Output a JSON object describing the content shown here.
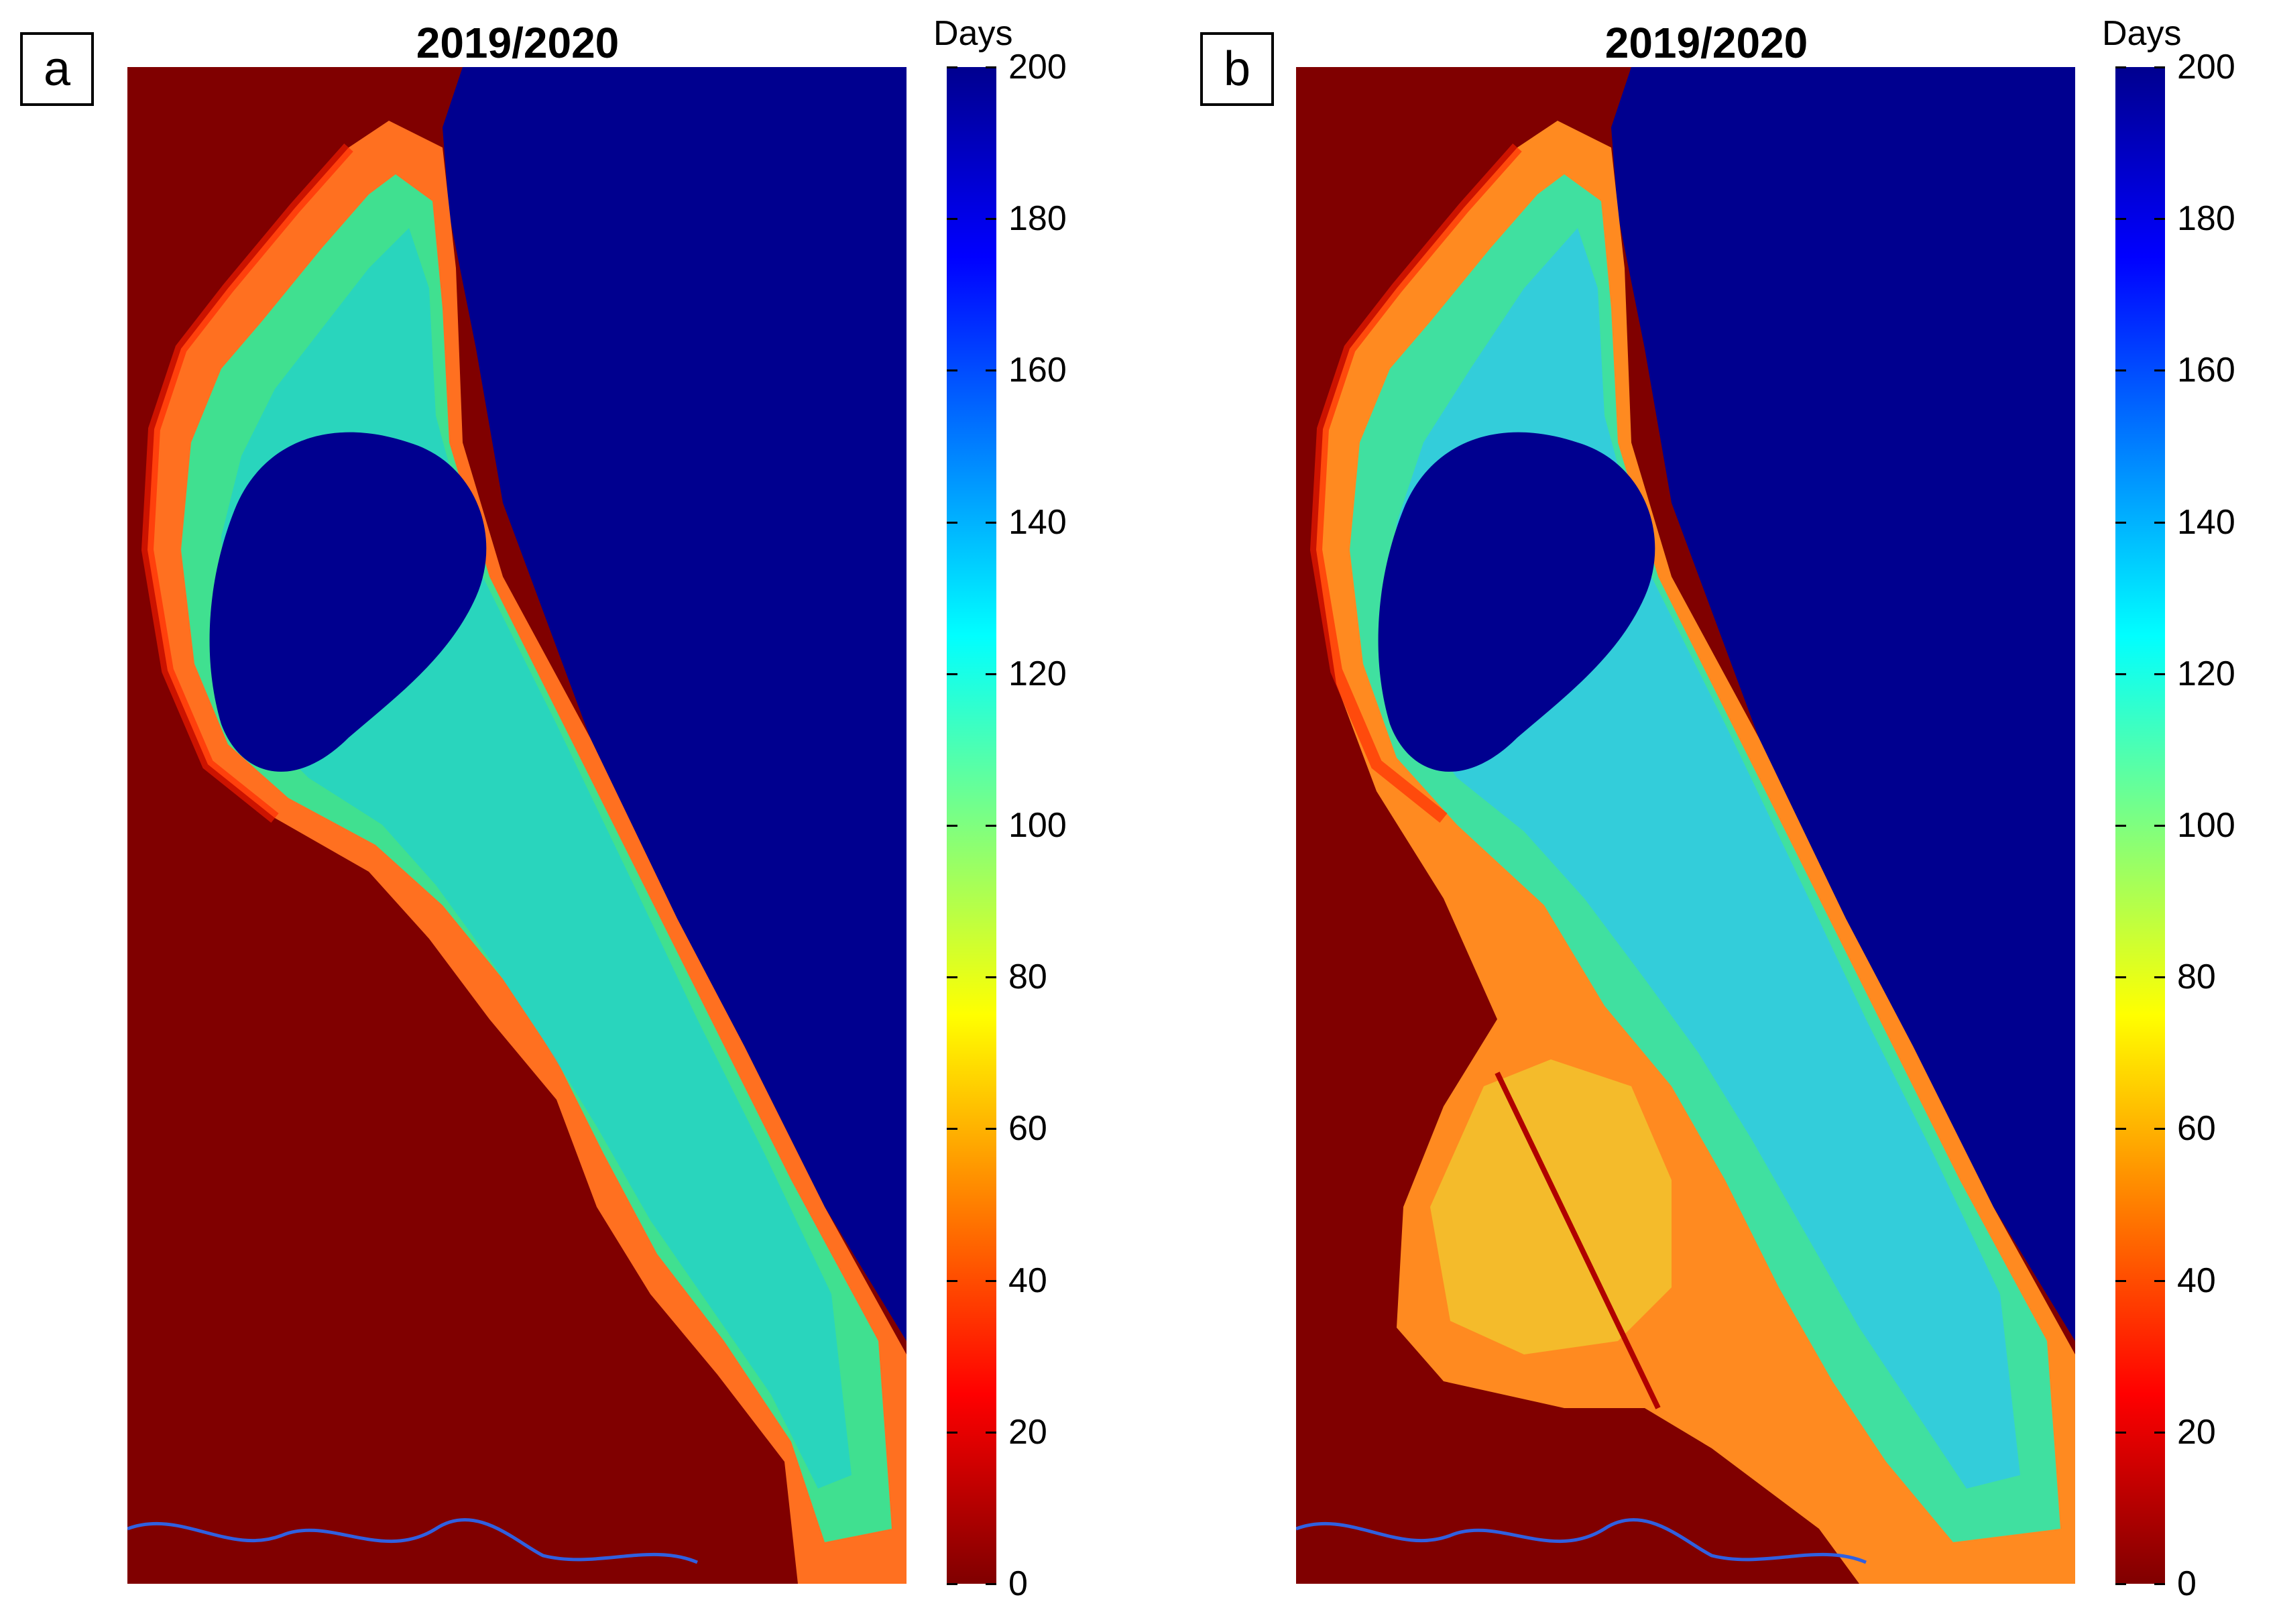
{
  "figure": {
    "panels": [
      {
        "letter": "a",
        "title": "2019/2020"
      },
      {
        "letter": "b",
        "title": "2019/2020"
      }
    ]
  },
  "colorbar": {
    "label": "Days",
    "range": [
      0,
      200
    ],
    "ticks": [
      "200",
      "180",
      "160",
      "140",
      "120",
      "100",
      "80",
      "60",
      "40",
      "20",
      "0"
    ],
    "colormap": "jet",
    "colors": [
      "#00008f",
      "#0000ff",
      "#007fff",
      "#00ffff",
      "#7fff7f",
      "#ffff00",
      "#ff7f00",
      "#ff0000",
      "#800000"
    ]
  },
  "map": {
    "background_value_color": "#800000",
    "sea_color": "#00008f"
  }
}
